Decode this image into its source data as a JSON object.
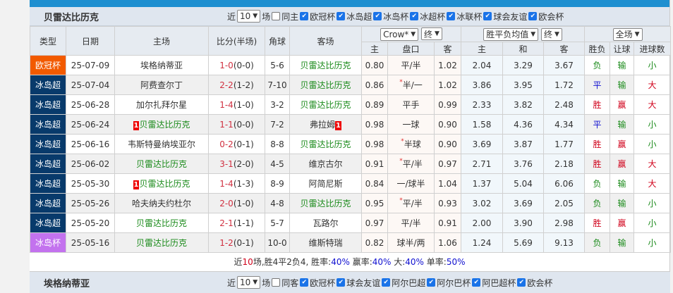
{
  "section": {
    "title": "贝雷达比历克",
    "recent_prefix": "近",
    "recent_count": "10",
    "recent_suffix": "场",
    "same_home": "同主",
    "filters": [
      "欧冠杯",
      "冰岛超",
      "冰岛杯",
      "冰超杯",
      "冰联杯",
      "球会友谊",
      "欧会杯"
    ]
  },
  "headers": {
    "type": "类型",
    "date": "日期",
    "home": "主场",
    "score": "比分(半场)",
    "corner": "角球",
    "away": "客场",
    "company": "Crow*",
    "stage1": "终",
    "avg": "胜平负均值",
    "stage2": "终",
    "period": "全场",
    "sub": [
      "主",
      "盘口",
      "客",
      "主",
      "和",
      "客",
      "胜负",
      "让球",
      "进球数"
    ]
  },
  "rows": [
    {
      "type": "欧冠杯",
      "tc": "ucl",
      "date": "25-07-09",
      "home": "埃格纳蒂亚",
      "hw": false,
      "ft": "1-0",
      "ht": "(0-0)",
      "corner": "5-6",
      "away": "贝雷达比历克",
      "aw": true,
      "o1": "0.80",
      "hcp": "平/半",
      "star": false,
      "o2": "1.02",
      "h": "2.04",
      "d": "3.29",
      "a": "3.67",
      "res": "负",
      "ah": "输",
      "ou": "小"
    },
    {
      "type": "冰岛超",
      "tc": "isl",
      "date": "25-07-04",
      "home": "阿费查尔丁",
      "hw": false,
      "ft": "2-2",
      "ht": "(1-2)",
      "corner": "7-10",
      "away": "贝雷达比历克",
      "aw": true,
      "o1": "0.86",
      "hcp": "半/一",
      "star": true,
      "o2": "1.02",
      "h": "3.86",
      "d": "3.95",
      "a": "1.72",
      "res": "平",
      "ah": "输",
      "ou": "大"
    },
    {
      "type": "冰岛超",
      "tc": "isl",
      "date": "25-06-28",
      "home": "加尔扎拜尔星",
      "hw": false,
      "ft": "1-4",
      "ht": "(1-0)",
      "corner": "3-2",
      "away": "贝雷达比历克",
      "aw": true,
      "o1": "0.89",
      "hcp": "平手",
      "star": false,
      "o2": "0.99",
      "h": "2.33",
      "d": "3.82",
      "a": "2.48",
      "res": "胜",
      "ah": "赢",
      "ou": "大"
    },
    {
      "type": "冰岛超",
      "tc": "isl",
      "date": "25-06-24",
      "home": "贝雷达比历克",
      "hw": true,
      "hrc": "1",
      "ft": "1-1",
      "ht": "(0-0)",
      "corner": "7-2",
      "away": "弗拉姆",
      "aw": false,
      "arc": "1",
      "o1": "0.98",
      "hcp": "一球",
      "star": false,
      "o2": "0.90",
      "h": "1.58",
      "d": "4.36",
      "a": "4.34",
      "res": "平",
      "ah": "输",
      "ou": "小"
    },
    {
      "type": "冰岛超",
      "tc": "isl",
      "date": "25-06-16",
      "home": "韦斯特曼纳埃亚尔",
      "hw": false,
      "ft": "0-2",
      "ht": "(0-1)",
      "corner": "8-8",
      "away": "贝雷达比历克",
      "aw": true,
      "o1": "0.98",
      "hcp": "半球",
      "star": true,
      "o2": "0.90",
      "h": "3.69",
      "d": "3.87",
      "a": "1.77",
      "res": "胜",
      "ah": "赢",
      "ou": "小"
    },
    {
      "type": "冰岛超",
      "tc": "isl",
      "date": "25-06-02",
      "home": "贝雷达比历克",
      "hw": true,
      "ft": "3-1",
      "ht": "(2-0)",
      "corner": "4-5",
      "away": "维京古尔",
      "aw": false,
      "o1": "0.91",
      "hcp": "平/半",
      "star": true,
      "o2": "0.97",
      "h": "2.71",
      "d": "3.76",
      "a": "2.18",
      "res": "胜",
      "ah": "赢",
      "ou": "大"
    },
    {
      "type": "冰岛超",
      "tc": "isl",
      "date": "25-05-30",
      "home": "贝雷达比历克",
      "hw": true,
      "hrc": "1",
      "ft": "1-4",
      "ht": "(1-3)",
      "corner": "8-9",
      "away": "阿简尼斯",
      "aw": false,
      "o1": "0.84",
      "hcp": "一/球半",
      "star": false,
      "o2": "1.04",
      "h": "1.37",
      "d": "5.04",
      "a": "6.06",
      "res": "负",
      "ah": "输",
      "ou": "大"
    },
    {
      "type": "冰岛超",
      "tc": "isl",
      "date": "25-05-26",
      "home": "哈夫纳夫约杜尔",
      "hw": false,
      "ft": "2-0",
      "ht": "(1-0)",
      "corner": "4-8",
      "away": "贝雷达比历克",
      "aw": true,
      "o1": "0.95",
      "hcp": "平/半",
      "star": true,
      "o2": "0.93",
      "h": "3.02",
      "d": "3.69",
      "a": "2.05",
      "res": "负",
      "ah": "输",
      "ou": "小"
    },
    {
      "type": "冰岛超",
      "tc": "isl",
      "date": "25-05-20",
      "home": "贝雷达比历克",
      "hw": true,
      "ft": "2-1",
      "ht": "(1-1)",
      "corner": "5-7",
      "away": "瓦路尔",
      "aw": false,
      "o1": "0.97",
      "hcp": "平/半",
      "star": false,
      "o2": "0.91",
      "h": "2.00",
      "d": "3.90",
      "a": "2.98",
      "res": "胜",
      "ah": "赢",
      "ou": "小"
    },
    {
      "type": "冰岛杯",
      "tc": "cup",
      "date": "25-05-16",
      "home": "贝雷达比历克",
      "hw": true,
      "ft": "1-2",
      "ht": "(0-1)",
      "corner": "10-0",
      "away": "维斯特瑞",
      "aw": false,
      "o1": "0.82",
      "hcp": "球半/两",
      "star": false,
      "o2": "1.06",
      "h": "1.24",
      "d": "5.69",
      "a": "9.13",
      "res": "负",
      "ah": "输",
      "ou": "小"
    }
  ],
  "summary": {
    "p1": "近",
    "n": "10",
    "p2": "场,胜4平2负4, 胜率:",
    "win": "40%",
    "p3": " 赢率:",
    "ah": "40%",
    "p4": " 大:",
    "big": "40%",
    "p5": " 单率:",
    "odd": "50%"
  },
  "next_section": {
    "title": "埃格纳蒂亚",
    "recent_prefix": "近",
    "recent_count": "10",
    "recent_suffix": "场",
    "same_away": "同客",
    "filters": [
      "欧冠杯",
      "球会友谊",
      "阿尔巴超",
      "阿尔巴杯",
      "阿巴超杯",
      "欧会杯"
    ]
  }
}
